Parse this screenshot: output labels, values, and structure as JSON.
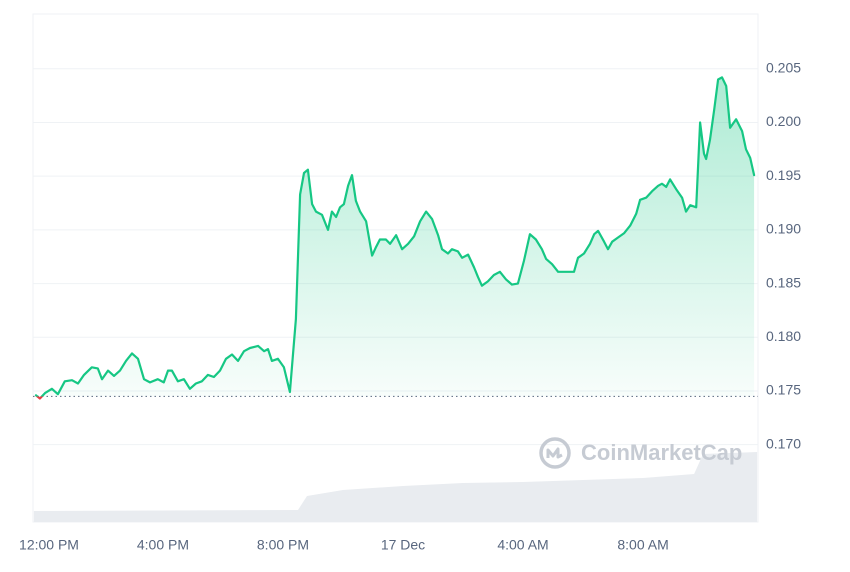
{
  "chart_data": {
    "type": "line",
    "watermark": "CoinMarketCap",
    "x": [
      -0.23,
      -0.1,
      0.07,
      0.3,
      0.5,
      0.73,
      0.97,
      1.17,
      1.37,
      1.63,
      1.83,
      1.97,
      2.17,
      2.37,
      2.57,
      2.77,
      2.97,
      3.17,
      3.37,
      3.57,
      3.83,
      4.03,
      4.17,
      4.3,
      4.5,
      4.7,
      4.9,
      5.1,
      5.3,
      5.5,
      5.7,
      5.9,
      6.1,
      6.3,
      6.5,
      6.7,
      6.9,
      7.17,
      7.37,
      7.5,
      7.63,
      7.83,
      8.03,
      8.23,
      8.43,
      8.57,
      8.7,
      8.83,
      8.97,
      9.1,
      9.3,
      9.5,
      9.63,
      9.77,
      9.9,
      10.03,
      10.17,
      10.3,
      10.43,
      10.57,
      10.77,
      10.97,
      11.1,
      11.23,
      11.43,
      11.57,
      11.77,
      11.97,
      12.17,
      12.37,
      12.57,
      12.77,
      12.97,
      13.17,
      13.3,
      13.5,
      13.63,
      13.83,
      13.97,
      14.17,
      14.37,
      14.5,
      14.63,
      14.83,
      15.03,
      15.23,
      15.43,
      15.63,
      15.83,
      16.03,
      16.23,
      16.43,
      16.63,
      16.77,
      16.97,
      17.17,
      17.43,
      17.7,
      17.83,
      18.03,
      18.23,
      18.37,
      18.5,
      18.7,
      18.83,
      18.97,
      19.17,
      19.37,
      19.57,
      19.77,
      19.9,
      20.1,
      20.3,
      20.5,
      20.63,
      20.77,
      20.9,
      21.1,
      21.3,
      21.43,
      21.57,
      21.77,
      21.9,
      22.03,
      22.1,
      22.23,
      22.37,
      22.5,
      22.63,
      22.77,
      22.9,
      23.1,
      23.3,
      23.43,
      23.57,
      23.7
    ],
    "values": [
      0.1746,
      0.1743,
      0.1748,
      0.1752,
      0.1747,
      0.1759,
      0.176,
      0.1757,
      0.1765,
      0.1772,
      0.1771,
      0.1761,
      0.1769,
      0.1764,
      0.1769,
      0.1778,
      0.1785,
      0.178,
      0.1761,
      0.1758,
      0.1761,
      0.1758,
      0.1769,
      0.1769,
      0.1759,
      0.1761,
      0.1752,
      0.1757,
      0.1759,
      0.1765,
      0.1763,
      0.1769,
      0.178,
      0.1784,
      0.1778,
      0.1787,
      0.179,
      0.1792,
      0.1787,
      0.1789,
      0.1778,
      0.178,
      0.1772,
      0.1749,
      0.1817,
      0.1933,
      0.1953,
      0.1956,
      0.1924,
      0.1917,
      0.1914,
      0.19,
      0.1917,
      0.1912,
      0.1921,
      0.1924,
      0.1941,
      0.1951,
      0.1927,
      0.1917,
      0.1908,
      0.1876,
      0.1884,
      0.1891,
      0.1891,
      0.1887,
      0.1895,
      0.1882,
      0.1887,
      0.1894,
      0.1908,
      0.1917,
      0.191,
      0.1895,
      0.1882,
      0.1878,
      0.1882,
      0.188,
      0.1874,
      0.1877,
      0.1865,
      0.1856,
      0.1848,
      0.1852,
      0.1858,
      0.1861,
      0.1854,
      0.1849,
      0.185,
      0.1871,
      0.1896,
      0.1891,
      0.1882,
      0.1873,
      0.1868,
      0.1861,
      0.1861,
      0.1861,
      0.1874,
      0.1878,
      0.1887,
      0.1896,
      0.1899,
      0.1889,
      0.1882,
      0.1889,
      0.1893,
      0.1897,
      0.1904,
      0.1915,
      0.1928,
      0.193,
      0.1936,
      0.1941,
      0.1943,
      0.194,
      0.1947,
      0.1938,
      0.193,
      0.1917,
      0.1923,
      0.1921,
      0.2,
      0.1971,
      0.1966,
      0.1984,
      0.2012,
      0.204,
      0.2042,
      0.2034,
      0.1995,
      0.2003,
      0.1992,
      0.1975,
      0.1967,
      0.1951
    ],
    "color": "#16c784",
    "below_color": "#ea3943",
    "baseline": 0.1745,
    "volume": {
      "x": [
        -0.3,
        8.5,
        8.8,
        10,
        12,
        14,
        16,
        18,
        20,
        21.7,
        22.0,
        23.8
      ],
      "values": [
        11,
        12,
        26,
        32,
        36,
        39,
        40,
        42,
        44,
        48,
        68,
        70
      ],
      "vlim": [
        0,
        80
      ],
      "color": "#e9ecf0"
    },
    "xlim": [
      -0.33,
      23.83
    ],
    "xticks": [
      {
        "value": 0,
        "label": "12:00 PM"
      },
      {
        "value": 4,
        "label": "4:00 PM"
      },
      {
        "value": 8,
        "label": "8:00 PM"
      },
      {
        "value": 12,
        "label": "17 Dec"
      },
      {
        "value": 16,
        "label": "4:00 AM"
      },
      {
        "value": 20,
        "label": "8:00 AM"
      }
    ],
    "ylim": [
      0.1628,
      0.2101
    ],
    "yticks": [
      {
        "value": 0.17,
        "label": "0.170"
      },
      {
        "value": 0.175,
        "label": "0.175"
      },
      {
        "value": 0.18,
        "label": "0.180"
      },
      {
        "value": 0.185,
        "label": "0.185"
      },
      {
        "value": 0.19,
        "label": "0.190"
      },
      {
        "value": 0.195,
        "label": "0.195"
      },
      {
        "value": 0.2,
        "label": "0.200"
      },
      {
        "value": 0.205,
        "label": "0.205"
      }
    ],
    "grid": true
  }
}
